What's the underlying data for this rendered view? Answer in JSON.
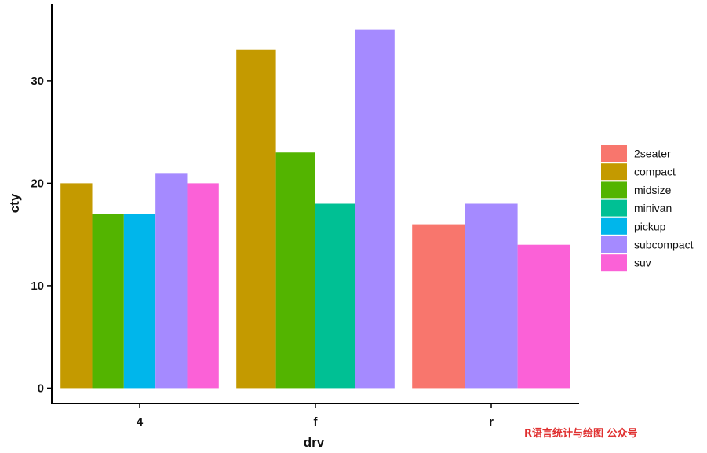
{
  "chart_data": {
    "type": "bar",
    "xlabel": "drv",
    "ylabel": "cty",
    "ylim": [
      -1.5,
      37.5
    ],
    "yticks": [
      0,
      10,
      20,
      30
    ],
    "grid": false,
    "legend_position": "right",
    "categories": [
      "4",
      "f",
      "r"
    ],
    "series": [
      {
        "name": "2seater",
        "color": "#F8766D",
        "values": [
          null,
          null,
          16
        ]
      },
      {
        "name": "compact",
        "color": "#C49A00",
        "values": [
          20,
          33,
          null
        ]
      },
      {
        "name": "midsize",
        "color": "#53B400",
        "values": [
          17,
          23,
          null
        ]
      },
      {
        "name": "minivan",
        "color": "#00C094",
        "values": [
          null,
          18,
          null
        ]
      },
      {
        "name": "pickup",
        "color": "#00B6EB",
        "values": [
          17,
          null,
          null
        ]
      },
      {
        "name": "subcompact",
        "color": "#A58AFF",
        "values": [
          21,
          35,
          18
        ]
      },
      {
        "name": "suv",
        "color": "#FB61D7",
        "values": [
          20,
          null,
          14
        ]
      }
    ]
  },
  "watermark": "R语言统计与绘图 公众号"
}
